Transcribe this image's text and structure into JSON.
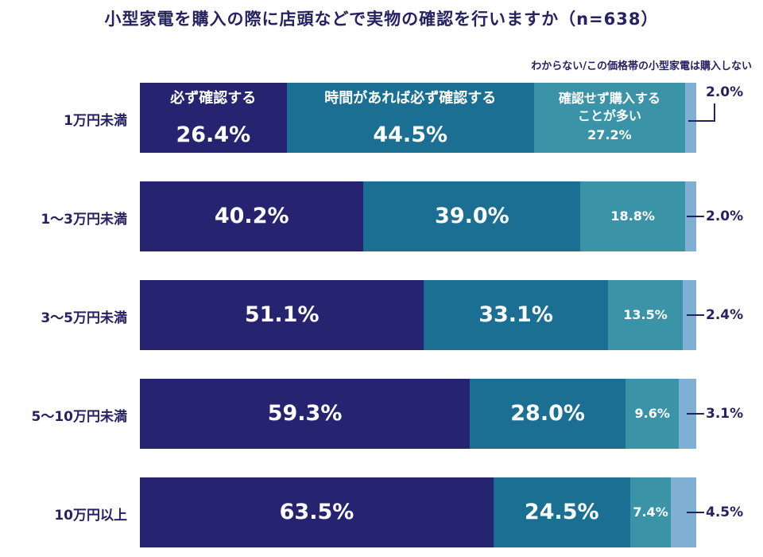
{
  "title": "小型家電を購入の際に店頭などで実物の確認を行いますか（n=638）",
  "legend_note": "わからない/この価格帯の小型家電は購入しない",
  "colors": {
    "always": "#262371",
    "if_time": "#1a6f92",
    "often_not": "#3b93a8",
    "unknown": "#7fb0d3",
    "text_dark": "#262262"
  },
  "chart_data": {
    "type": "bar",
    "orientation": "horizontal",
    "stacked": true,
    "title": "小型家電を購入の際に店頭などで実物の確認を行いますか（n=638）",
    "categories": [
      "1万円未満",
      "1～3万円未満",
      "3～5万円未満",
      "5～10万円未満",
      "10万円以上"
    ],
    "series": [
      {
        "name": "必ず確認する",
        "values": [
          26.4,
          40.2,
          51.1,
          59.3,
          63.5
        ]
      },
      {
        "name": "時間があれば必ず確認する",
        "values": [
          44.5,
          39.0,
          33.1,
          28.0,
          24.5
        ]
      },
      {
        "name": "確認せず購入することが多い",
        "values": [
          27.2,
          18.8,
          13.5,
          9.6,
          7.4
        ]
      },
      {
        "name": "わからない/この価格帯の小型家電は購入しない",
        "values": [
          2.0,
          2.0,
          2.4,
          3.1,
          4.5
        ]
      }
    ],
    "labels": [
      [
        "26.4%",
        "44.5%",
        "27.2%",
        "2.0%"
      ],
      [
        "40.2%",
        "39.0%",
        "18.8%",
        "2.0%"
      ],
      [
        "51.1%",
        "33.1%",
        "13.5%",
        "2.4%"
      ],
      [
        "59.3%",
        "28.0%",
        "9.6%",
        "3.1%"
      ],
      [
        "63.5%",
        "24.5%",
        "7.4%",
        "4.5%"
      ]
    ],
    "inline_series_labels": [
      "必ず確認する",
      "時間があれば必ず確認する",
      "確認せず購入する",
      "ことが多い"
    ],
    "xlim": [
      0,
      100
    ],
    "unit": "%"
  }
}
